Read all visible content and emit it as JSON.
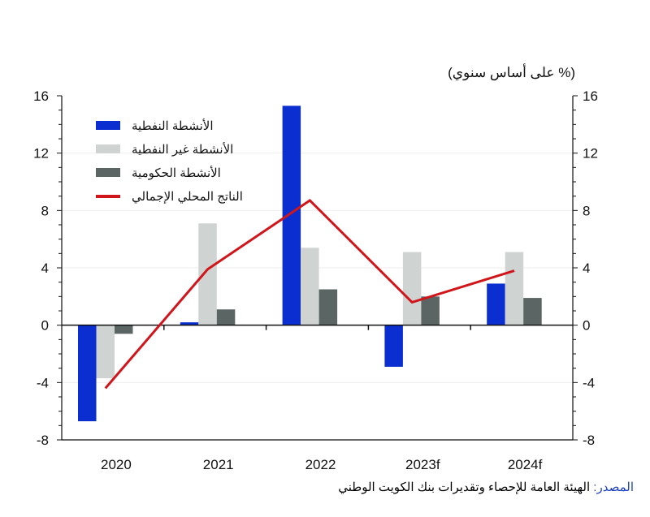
{
  "chart_data": {
    "type": "bar",
    "unit_label": "(% على أساس سنوي)",
    "categories": [
      "2020",
      "2021",
      "2022",
      "2023f",
      "2024f"
    ],
    "series": [
      {
        "name": "الأنشطة النفطية",
        "kind": "bar",
        "color": "#0a2ecf",
        "values": [
          -6.7,
          0.2,
          15.3,
          -2.9,
          2.9
        ]
      },
      {
        "name": "الأنشطة غير النفطية",
        "kind": "bar",
        "color": "#cfd4d3",
        "values": [
          -3.7,
          7.1,
          5.4,
          5.1,
          5.1
        ]
      },
      {
        "name": "الأنشطة الحكومية",
        "kind": "bar",
        "color": "#5b6564",
        "values": [
          -0.6,
          1.1,
          2.5,
          2.0,
          1.9
        ]
      },
      {
        "name": "الناتج المحلي الإجمالي",
        "kind": "line",
        "color": "#d0161b",
        "values": [
          -4.4,
          3.9,
          8.7,
          1.6,
          3.8
        ]
      }
    ],
    "ylim": [
      -8,
      16
    ],
    "yticks": [
      "16",
      "12",
      "8",
      "4",
      "0",
      "-4",
      "-8"
    ],
    "y_axes": "both",
    "grid": true,
    "legend_position": "top-left"
  },
  "source": {
    "label": "المصدر:",
    "text": "الهيئة العامة للإحصاء وتقديرات بنك الكويت الوطني"
  }
}
